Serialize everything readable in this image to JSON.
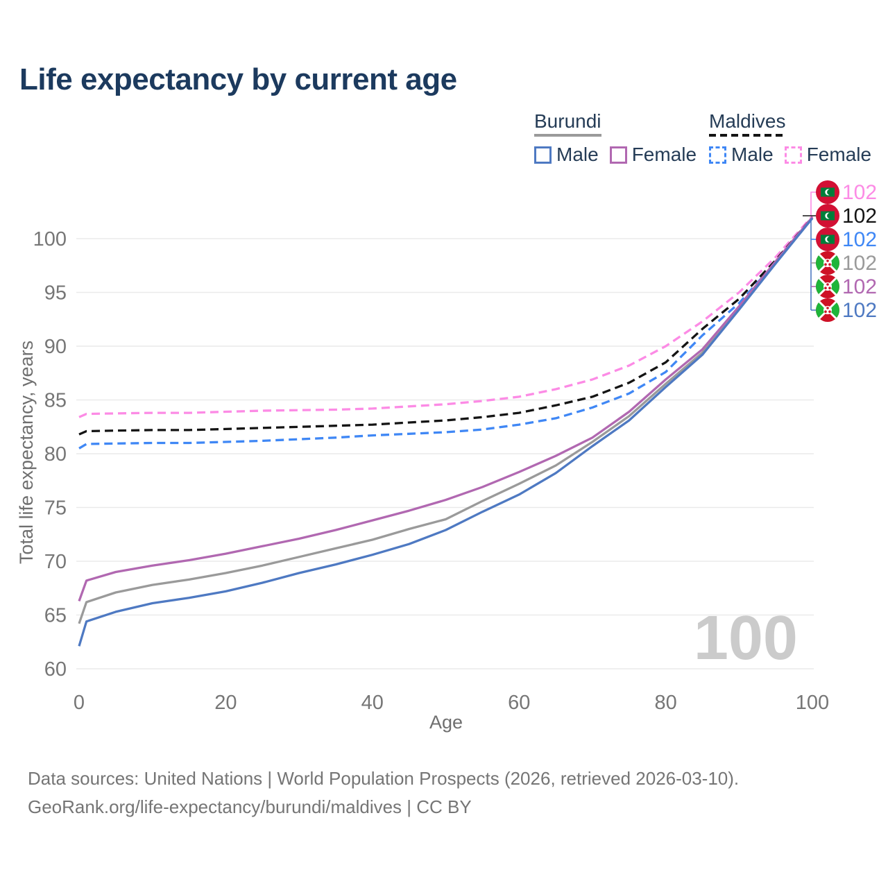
{
  "title": "Life expectancy by current age",
  "watermark": "100",
  "legend": {
    "groups": [
      {
        "country": "Burundi",
        "dashed": false,
        "underline_color": "#9a9a9a",
        "items": [
          {
            "label": "Male",
            "color": "#4e79c2",
            "dashed": false
          },
          {
            "label": "Female",
            "color": "#b168b1",
            "dashed": false
          }
        ]
      },
      {
        "country": "Maldives",
        "dashed": true,
        "underline_color": "#141414",
        "items": [
          {
            "label": "Male",
            "color": "#3f87f5",
            "dashed": true
          },
          {
            "label": "Female",
            "color": "#fc8be5",
            "dashed": true
          }
        ]
      }
    ]
  },
  "footer": {
    "line1": "Data sources: United Nations | World Population Prospects (2026, retrieved 2026-03-10).",
    "line2": "GeoRank.org/life-expectancy/burundi/maldives | CC BY"
  },
  "chart_data": {
    "type": "line",
    "title": "Life expectancy by current age",
    "xlabel": "Age",
    "ylabel": "Total life expectancy, years",
    "xlim": [
      0,
      100
    ],
    "ylim": [
      60,
      102.5
    ],
    "xticks": [
      0,
      20,
      40,
      60,
      80,
      100
    ],
    "yticks": [
      60,
      65,
      70,
      75,
      80,
      85,
      90,
      95,
      100
    ],
    "grid": true,
    "legend_position": "top-right",
    "x": [
      0,
      1,
      5,
      10,
      15,
      20,
      25,
      30,
      35,
      40,
      45,
      50,
      55,
      60,
      65,
      70,
      75,
      80,
      85,
      90,
      95,
      100
    ],
    "series": [
      {
        "name": "Maldives Female",
        "country": "Maldives",
        "sex": "Female",
        "color": "#fc8be5",
        "dashed": true,
        "flag": "maldives",
        "end_label": "102",
        "values": [
          83.4,
          83.7,
          83.75,
          83.8,
          83.8,
          83.9,
          84.0,
          84.05,
          84.1,
          84.2,
          84.4,
          84.6,
          84.9,
          85.3,
          86.0,
          86.9,
          88.2,
          90.0,
          92.3,
          95.0,
          98.3,
          102.1
        ]
      },
      {
        "name": "Maldives Both sexes",
        "country": "Maldives",
        "sex": "Both",
        "color": "#141414",
        "dashed": true,
        "flag": "maldives",
        "end_label": "102",
        "values": [
          81.8,
          82.1,
          82.15,
          82.2,
          82.2,
          82.3,
          82.4,
          82.5,
          82.6,
          82.7,
          82.9,
          83.1,
          83.4,
          83.8,
          84.5,
          85.3,
          86.6,
          88.5,
          91.6,
          94.4,
          98.0,
          102.0
        ]
      },
      {
        "name": "Maldives Male",
        "country": "Maldives",
        "sex": "Male",
        "color": "#3f87f5",
        "dashed": true,
        "flag": "maldives",
        "end_label": "102",
        "values": [
          80.5,
          80.9,
          80.95,
          81.0,
          81.0,
          81.1,
          81.2,
          81.35,
          81.5,
          81.7,
          81.85,
          82.0,
          82.25,
          82.7,
          83.3,
          84.3,
          85.6,
          87.6,
          91.0,
          94.0,
          97.8,
          101.9
        ]
      },
      {
        "name": "Burundi Both sexes",
        "country": "Burundi",
        "sex": "Both",
        "color": "#9a9a9a",
        "dashed": false,
        "flag": "burundi",
        "end_label": "102",
        "values": [
          64.2,
          66.2,
          67.1,
          67.8,
          68.3,
          68.9,
          69.6,
          70.4,
          71.2,
          72.0,
          73.0,
          73.9,
          75.6,
          77.2,
          78.9,
          81.1,
          83.5,
          86.5,
          89.4,
          93.5,
          97.8,
          101.9
        ]
      },
      {
        "name": "Burundi Female",
        "country": "Burundi",
        "sex": "Female",
        "color": "#b168b1",
        "dashed": false,
        "flag": "burundi",
        "end_label": "102",
        "values": [
          66.3,
          68.2,
          69.0,
          69.6,
          70.1,
          70.7,
          71.4,
          72.1,
          72.9,
          73.8,
          74.7,
          75.7,
          76.9,
          78.3,
          79.8,
          81.5,
          83.9,
          86.9,
          89.7,
          93.7,
          97.9,
          102.0
        ]
      },
      {
        "name": "Burundi Male",
        "country": "Burundi",
        "sex": "Male",
        "color": "#4e79c2",
        "dashed": false,
        "flag": "burundi",
        "end_label": "102",
        "values": [
          62.1,
          64.4,
          65.3,
          66.1,
          66.6,
          67.2,
          68.0,
          68.9,
          69.7,
          70.6,
          71.6,
          72.9,
          74.6,
          76.2,
          78.2,
          80.7,
          83.1,
          86.2,
          89.2,
          93.4,
          97.7,
          101.9
        ]
      }
    ],
    "colors": {
      "title_text": "#1c3a5e",
      "axis_text": "#767676",
      "gridline": "#eaeaea",
      "watermark": "#cbcbcb",
      "footer_text": "#757575"
    }
  }
}
